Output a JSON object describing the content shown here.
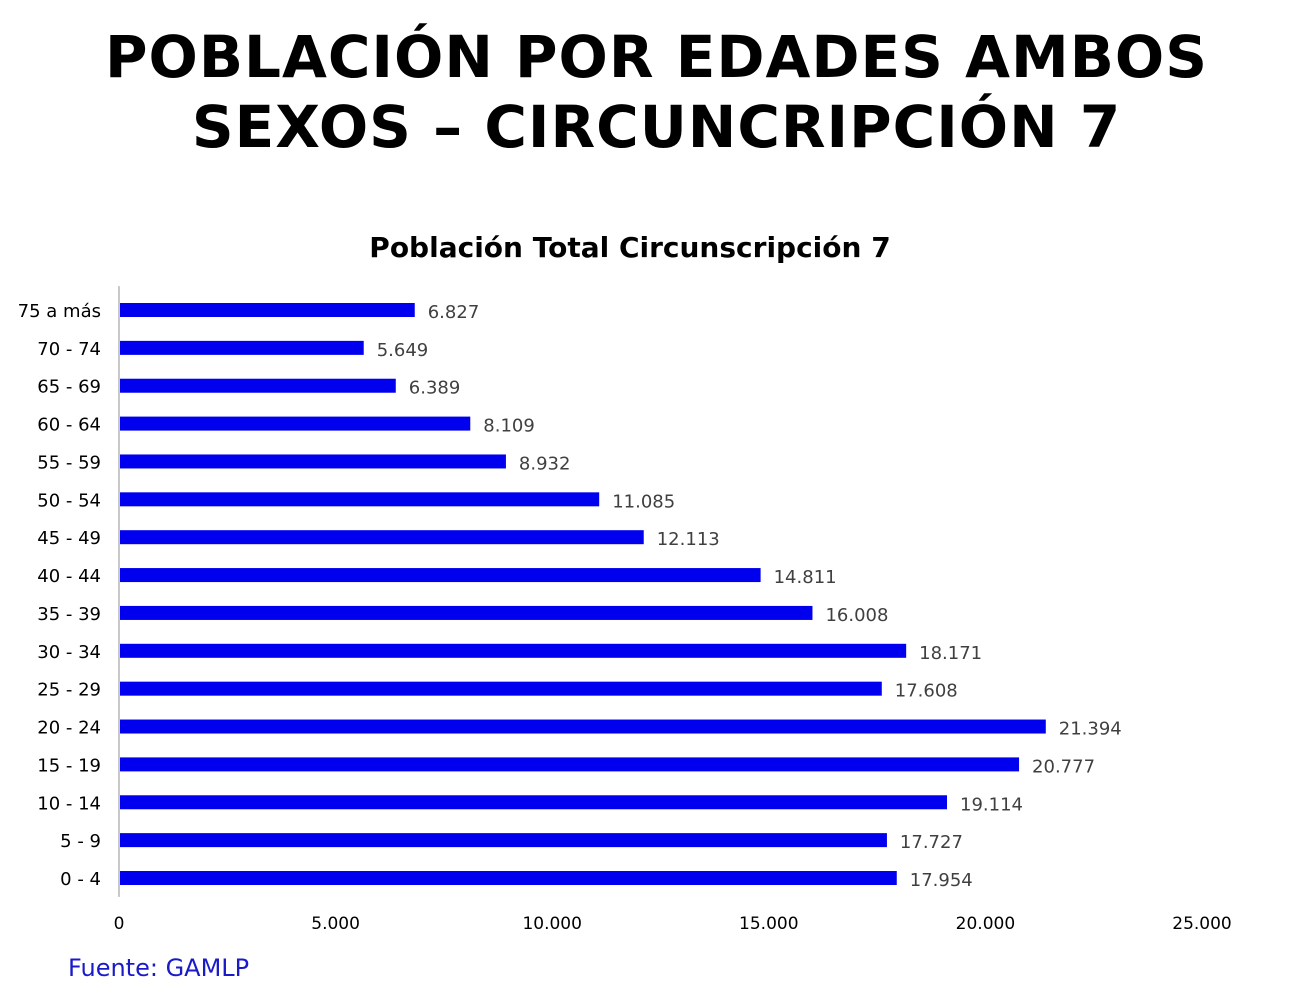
{
  "header": {
    "title_line1": "POBLACIÓN POR EDADES AMBOS",
    "title_line2": "SEXOS – CIRCUNCRIPCIÓN 7"
  },
  "footer": {
    "source": "Fuente: GAMLP"
  },
  "chart_data": {
    "type": "bar",
    "orientation": "horizontal",
    "title": "Población Total Circunscripción 7",
    "categories": [
      "75 a más",
      "70 - 74",
      "65 - 69",
      "60 - 64",
      "55 - 59",
      "50 - 54",
      "45 - 49",
      "40 - 44",
      "35 - 39",
      "30 - 34",
      "25 - 29",
      "20 - 24",
      "15 - 19",
      "10 - 14",
      "5 - 9",
      "0 - 4"
    ],
    "values": [
      6827,
      5649,
      6389,
      8109,
      8932,
      11085,
      12113,
      14811,
      16008,
      18171,
      17608,
      21394,
      20777,
      19114,
      17727,
      17954
    ],
    "value_labels": [
      "6.827",
      "5.649",
      "6.389",
      "8.109",
      "8.932",
      "11.085",
      "12.113",
      "14.811",
      "16.008",
      "18.171",
      "17.608",
      "21.394",
      "20.777",
      "19.114",
      "17.727",
      "17.954"
    ],
    "xlim": [
      0,
      25000
    ],
    "x_ticks": [
      0,
      5000,
      10000,
      15000,
      20000,
      25000
    ],
    "x_tick_labels": [
      "0",
      "5.000",
      "10.000",
      "15.000",
      "20.000",
      "25.000"
    ],
    "grid": false,
    "legend": "none",
    "bar_color": "#0000ee"
  }
}
